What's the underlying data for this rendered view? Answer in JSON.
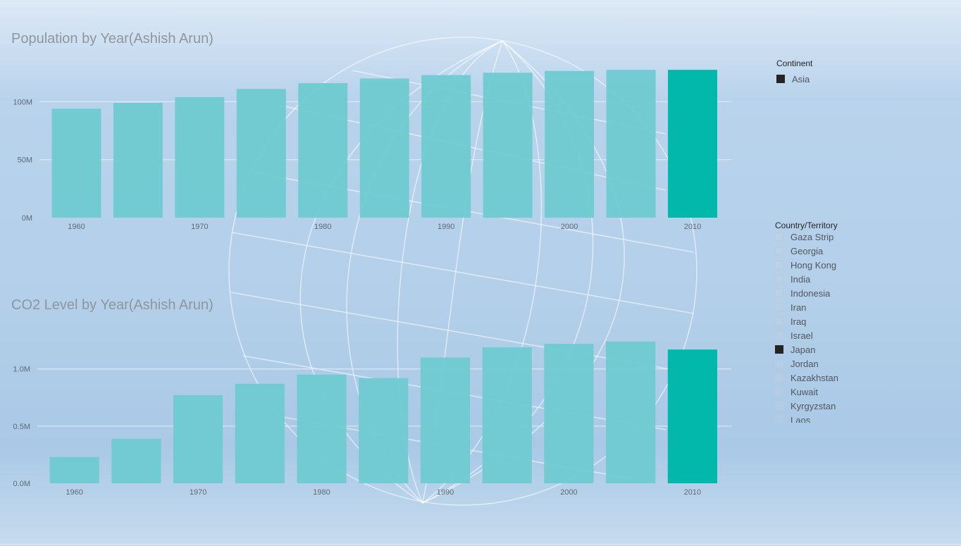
{
  "charts": [
    {
      "title": "Population by Year(Ashish Arun)"
    },
    {
      "title": "CO2 Level by Year(Ashish Arun)"
    }
  ],
  "colors": {
    "bar": "#6fcad1",
    "bar_selected": "#01b8aa",
    "gridline": "#e8eef4",
    "selected_box": "#252423"
  },
  "chart_data": [
    {
      "type": "bar",
      "title": "Population by Year(Ashish Arun)",
      "categories": [
        "1960",
        "1965",
        "1970",
        "1975",
        "1980",
        "1985",
        "1990",
        "1995",
        "2000",
        "2005",
        "2010"
      ],
      "values": [
        94,
        99,
        104,
        111,
        116,
        120,
        123,
        125,
        126.5,
        127.5,
        127.5
      ],
      "value_unit": "M",
      "highlighted": "2010",
      "yticks": [
        "0M",
        "50M",
        "100M"
      ],
      "ytick_values": [
        0,
        50,
        100
      ],
      "ylim": [
        0,
        130
      ],
      "xticks": [
        "1960",
        "1970",
        "1980",
        "1990",
        "2000",
        "2010"
      ],
      "grid": true
    },
    {
      "type": "bar",
      "title": "CO2 Level by Year(Ashish Arun)",
      "categories": [
        "1960",
        "1965",
        "1970",
        "1975",
        "1980",
        "1985",
        "1990",
        "1995",
        "2000",
        "2005",
        "2010"
      ],
      "values": [
        0.23,
        0.39,
        0.77,
        0.87,
        0.95,
        0.92,
        1.1,
        1.19,
        1.22,
        1.24,
        1.17
      ],
      "value_unit": "M",
      "highlighted": "2010",
      "yticks": [
        "0.0M",
        "0.5M",
        "1.0M"
      ],
      "ytick_values": [
        0,
        0.5,
        1.0
      ],
      "ylim": [
        0,
        1.3
      ],
      "xticks": [
        "1960",
        "1970",
        "1980",
        "1990",
        "2000",
        "2010"
      ],
      "grid": true
    }
  ],
  "continent_slicer": {
    "title": "Continent",
    "items": [
      {
        "label": "Asia",
        "selected": true
      }
    ]
  },
  "country_slicer": {
    "title": "Country/Territory",
    "items": [
      {
        "label": "Gaza Strip",
        "selected": false
      },
      {
        "label": "Georgia",
        "selected": false
      },
      {
        "label": "Hong Kong",
        "selected": false
      },
      {
        "label": "India",
        "selected": false
      },
      {
        "label": "Indonesia",
        "selected": false
      },
      {
        "label": "Iran",
        "selected": false
      },
      {
        "label": "Iraq",
        "selected": false
      },
      {
        "label": "Israel",
        "selected": false
      },
      {
        "label": "Japan",
        "selected": true
      },
      {
        "label": "Jordan",
        "selected": false
      },
      {
        "label": "Kazakhstan",
        "selected": false
      },
      {
        "label": "Kuwait",
        "selected": false
      },
      {
        "label": "Kyrgyzstan",
        "selected": false
      },
      {
        "label": "Laos",
        "selected": false
      }
    ]
  }
}
